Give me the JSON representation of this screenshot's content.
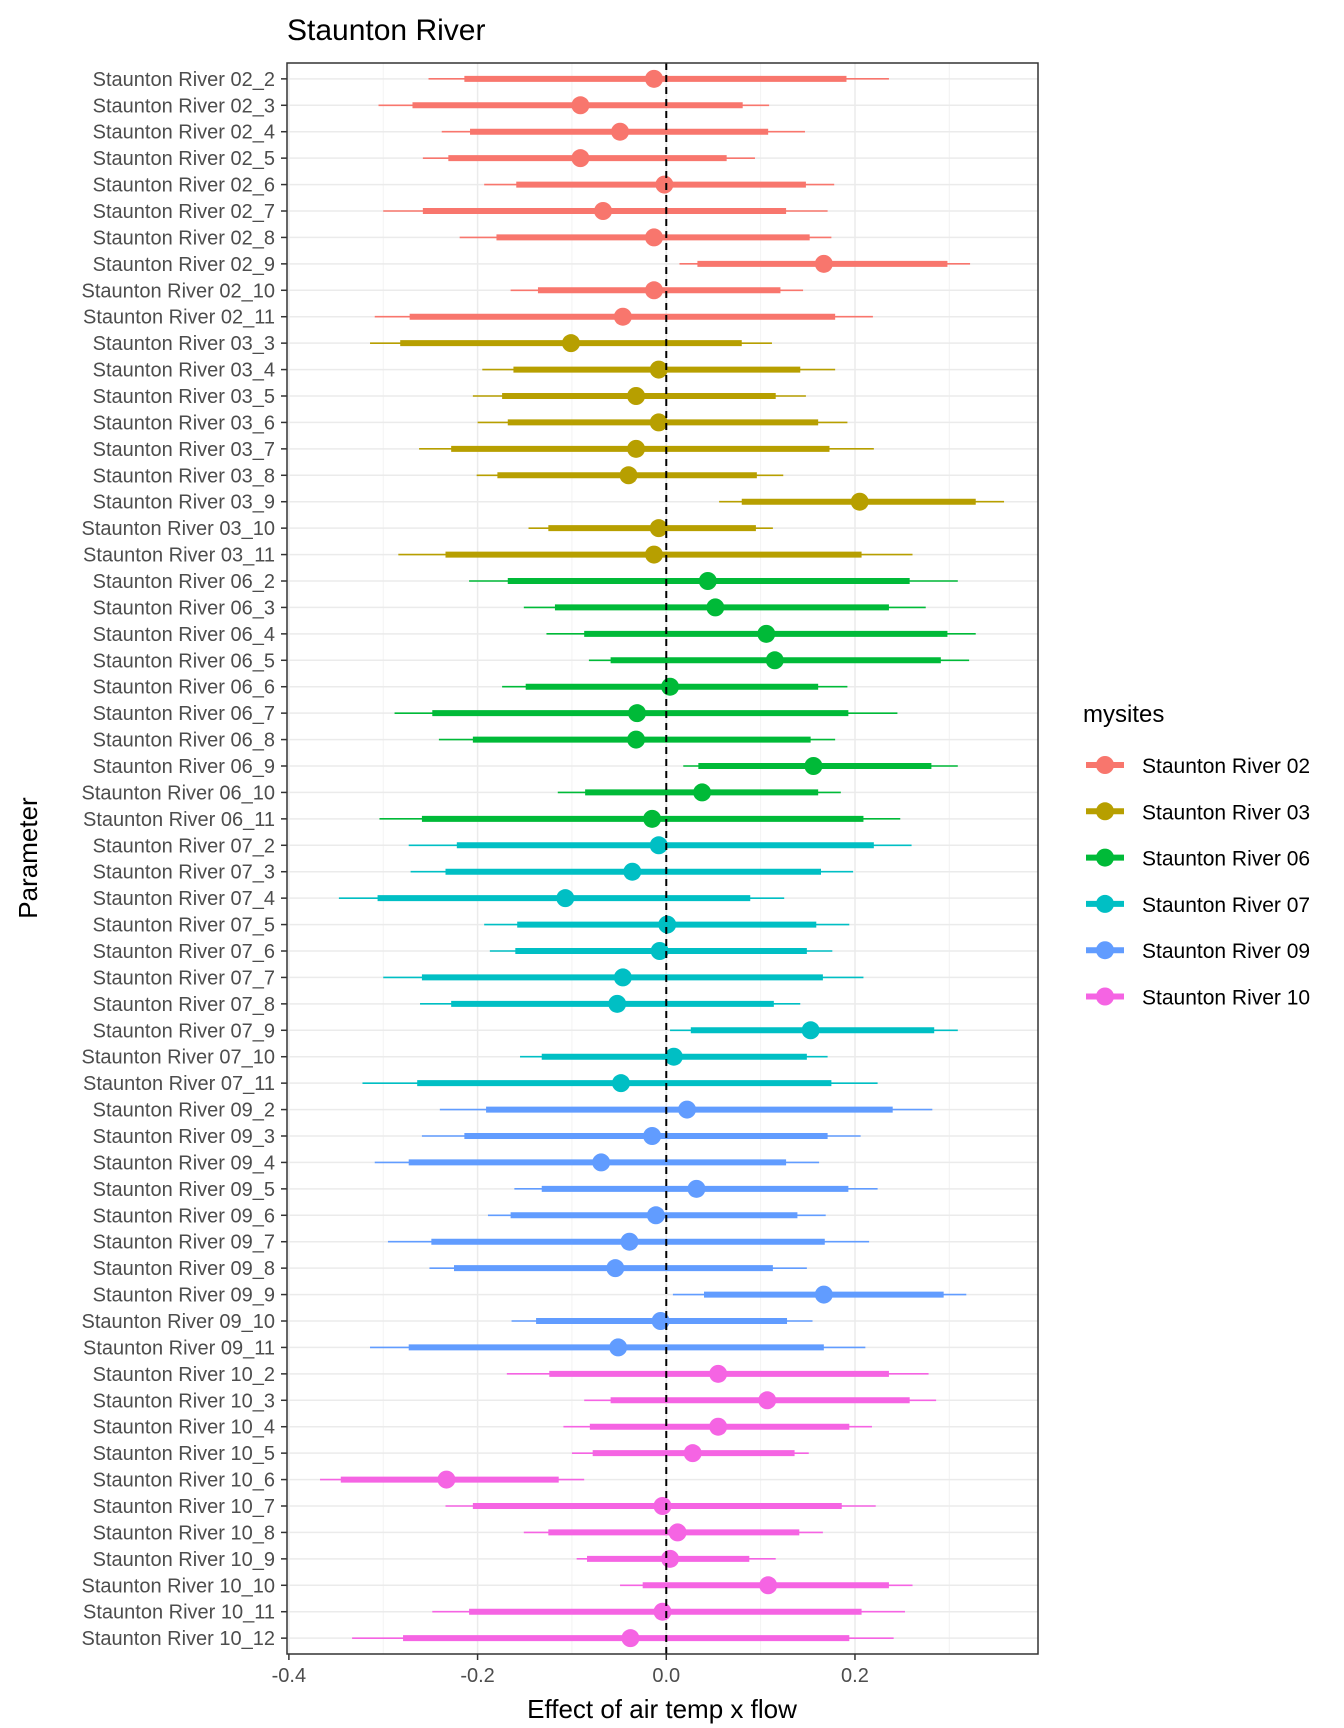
{
  "chart_data": {
    "type": "forest",
    "title": "Staunton River",
    "xlabel": "Effect of air temp x flow",
    "ylabel": "Parameter",
    "xlim": [
      -0.402,
      0.394
    ],
    "xticks": [
      -0.4,
      -0.2,
      0.0,
      0.2
    ],
    "xtick_labels": [
      "-0.4",
      "-0.2",
      "0.0",
      "0.2"
    ],
    "reference_line": 0,
    "grid": true,
    "legend": {
      "title": "mysites",
      "placement": "right",
      "entries": [
        {
          "name": "Staunton River 02",
          "color": "#F8766D"
        },
        {
          "name": "Staunton River 03",
          "color": "#B79F00"
        },
        {
          "name": "Staunton River 06",
          "color": "#00BA38"
        },
        {
          "name": "Staunton River 07",
          "color": "#00BFC4"
        },
        {
          "name": "Staunton River 09",
          "color": "#619CFF"
        },
        {
          "name": "Staunton River 10",
          "color": "#F564E3"
        }
      ]
    },
    "columns": [
      "label",
      "site_index",
      "outer_low",
      "inner_low",
      "estimate",
      "inner_high",
      "outer_high"
    ],
    "rows": [
      [
        "Staunton River 02_2",
        0,
        -0.252,
        -0.214,
        -0.013,
        0.191,
        0.236
      ],
      [
        "Staunton River 02_3",
        0,
        -0.305,
        -0.269,
        -0.091,
        0.081,
        0.109
      ],
      [
        "Staunton River 02_4",
        0,
        -0.238,
        -0.208,
        -0.049,
        0.108,
        0.147
      ],
      [
        "Staunton River 02_5",
        0,
        -0.258,
        -0.231,
        -0.091,
        0.064,
        0.094
      ],
      [
        "Staunton River 02_6",
        0,
        -0.193,
        -0.159,
        -0.002,
        0.148,
        0.178
      ],
      [
        "Staunton River 02_7",
        0,
        -0.3,
        -0.258,
        -0.067,
        0.127,
        0.171
      ],
      [
        "Staunton River 02_8",
        0,
        -0.219,
        -0.18,
        -0.013,
        0.152,
        0.175
      ],
      [
        "Staunton River 02_9",
        0,
        0.014,
        0.033,
        0.167,
        0.298,
        0.322
      ],
      [
        "Staunton River 02_10",
        0,
        -0.165,
        -0.136,
        -0.013,
        0.121,
        0.145
      ],
      [
        "Staunton River 02_11",
        0,
        -0.309,
        -0.272,
        -0.046,
        0.179,
        0.219
      ],
      [
        "Staunton River 03_3",
        1,
        -0.314,
        -0.282,
        -0.101,
        0.08,
        0.112
      ],
      [
        "Staunton River 03_4",
        1,
        -0.195,
        -0.162,
        -0.008,
        0.142,
        0.179
      ],
      [
        "Staunton River 03_5",
        1,
        -0.205,
        -0.174,
        -0.032,
        0.116,
        0.148
      ],
      [
        "Staunton River 03_6",
        1,
        -0.2,
        -0.168,
        -0.008,
        0.161,
        0.192
      ],
      [
        "Staunton River 03_7",
        1,
        -0.262,
        -0.228,
        -0.032,
        0.173,
        0.22
      ],
      [
        "Staunton River 03_8",
        1,
        -0.201,
        -0.179,
        -0.04,
        0.096,
        0.124
      ],
      [
        "Staunton River 03_9",
        1,
        0.056,
        0.08,
        0.205,
        0.328,
        0.358
      ],
      [
        "Staunton River 03_10",
        1,
        -0.146,
        -0.125,
        -0.008,
        0.095,
        0.113
      ],
      [
        "Staunton River 03_11",
        1,
        -0.284,
        -0.234,
        -0.013,
        0.207,
        0.261
      ],
      [
        "Staunton River 06_2",
        2,
        -0.209,
        -0.168,
        0.044,
        0.258,
        0.309
      ],
      [
        "Staunton River 06_3",
        2,
        -0.151,
        -0.118,
        0.052,
        0.236,
        0.275
      ],
      [
        "Staunton River 06_4",
        2,
        -0.127,
        -0.087,
        0.106,
        0.298,
        0.328
      ],
      [
        "Staunton River 06_5",
        2,
        -0.082,
        -0.059,
        0.115,
        0.291,
        0.321
      ],
      [
        "Staunton River 06_6",
        2,
        -0.174,
        -0.149,
        0.004,
        0.161,
        0.192
      ],
      [
        "Staunton River 06_7",
        2,
        -0.288,
        -0.248,
        -0.031,
        0.193,
        0.245
      ],
      [
        "Staunton River 06_8",
        2,
        -0.241,
        -0.205,
        -0.032,
        0.153,
        0.179
      ],
      [
        "Staunton River 06_9",
        2,
        0.018,
        0.034,
        0.156,
        0.281,
        0.309
      ],
      [
        "Staunton River 06_10",
        2,
        -0.115,
        -0.086,
        0.038,
        0.161,
        0.185
      ],
      [
        "Staunton River 06_11",
        2,
        -0.304,
        -0.259,
        -0.015,
        0.209,
        0.248
      ],
      [
        "Staunton River 07_2",
        3,
        -0.273,
        -0.222,
        -0.008,
        0.22,
        0.26
      ],
      [
        "Staunton River 07_3",
        3,
        -0.271,
        -0.234,
        -0.036,
        0.164,
        0.198
      ],
      [
        "Staunton River 07_4",
        3,
        -0.347,
        -0.306,
        -0.107,
        0.089,
        0.125
      ],
      [
        "Staunton River 07_5",
        3,
        -0.193,
        -0.158,
        0.001,
        0.159,
        0.194
      ],
      [
        "Staunton River 07_6",
        3,
        -0.187,
        -0.16,
        -0.007,
        0.149,
        0.176
      ],
      [
        "Staunton River 07_7",
        3,
        -0.3,
        -0.259,
        -0.046,
        0.166,
        0.209
      ],
      [
        "Staunton River 07_8",
        3,
        -0.261,
        -0.228,
        -0.052,
        0.114,
        0.142
      ],
      [
        "Staunton River 07_9",
        3,
        0.004,
        0.026,
        0.153,
        0.284,
        0.309
      ],
      [
        "Staunton River 07_10",
        3,
        -0.155,
        -0.132,
        0.008,
        0.149,
        0.171
      ],
      [
        "Staunton River 07_11",
        3,
        -0.322,
        -0.264,
        -0.048,
        0.175,
        0.224
      ],
      [
        "Staunton River 09_2",
        4,
        -0.24,
        -0.191,
        0.022,
        0.24,
        0.282
      ],
      [
        "Staunton River 09_3",
        4,
        -0.259,
        -0.214,
        -0.015,
        0.171,
        0.206
      ],
      [
        "Staunton River 09_4",
        4,
        -0.309,
        -0.273,
        -0.069,
        0.127,
        0.162
      ],
      [
        "Staunton River 09_5",
        4,
        -0.161,
        -0.132,
        0.032,
        0.193,
        0.224
      ],
      [
        "Staunton River 09_6",
        4,
        -0.189,
        -0.165,
        -0.011,
        0.139,
        0.169
      ],
      [
        "Staunton River 09_7",
        4,
        -0.295,
        -0.249,
        -0.039,
        0.168,
        0.215
      ],
      [
        "Staunton River 09_8",
        4,
        -0.251,
        -0.225,
        -0.054,
        0.113,
        0.149
      ],
      [
        "Staunton River 09_9",
        4,
        0.007,
        0.04,
        0.167,
        0.294,
        0.318
      ],
      [
        "Staunton River 09_10",
        4,
        -0.164,
        -0.138,
        -0.006,
        0.128,
        0.155
      ],
      [
        "Staunton River 09_11",
        4,
        -0.314,
        -0.273,
        -0.051,
        0.167,
        0.211
      ],
      [
        "Staunton River 10_2",
        5,
        -0.169,
        -0.124,
        0.055,
        0.236,
        0.278
      ],
      [
        "Staunton River 10_3",
        5,
        -0.087,
        -0.059,
        0.107,
        0.258,
        0.286
      ],
      [
        "Staunton River 10_4",
        5,
        -0.109,
        -0.081,
        0.055,
        0.194,
        0.218
      ],
      [
        "Staunton River 10_5",
        5,
        -0.1,
        -0.078,
        0.028,
        0.136,
        0.151
      ],
      [
        "Staunton River 10_6",
        5,
        -0.367,
        -0.345,
        -0.233,
        -0.114,
        -0.087
      ],
      [
        "Staunton River 10_7",
        5,
        -0.234,
        -0.205,
        -0.004,
        0.186,
        0.222
      ],
      [
        "Staunton River 10_8",
        5,
        -0.151,
        -0.125,
        0.012,
        0.141,
        0.166
      ],
      [
        "Staunton River 10_9",
        5,
        -0.095,
        -0.084,
        0.004,
        0.088,
        0.116
      ],
      [
        "Staunton River 10_10",
        5,
        -0.049,
        -0.025,
        0.108,
        0.236,
        0.261
      ],
      [
        "Staunton River 10_11",
        5,
        -0.248,
        -0.209,
        -0.004,
        0.207,
        0.253
      ],
      [
        "Staunton River 10_12",
        5,
        -0.333,
        -0.279,
        -0.038,
        0.194,
        0.241
      ]
    ]
  }
}
